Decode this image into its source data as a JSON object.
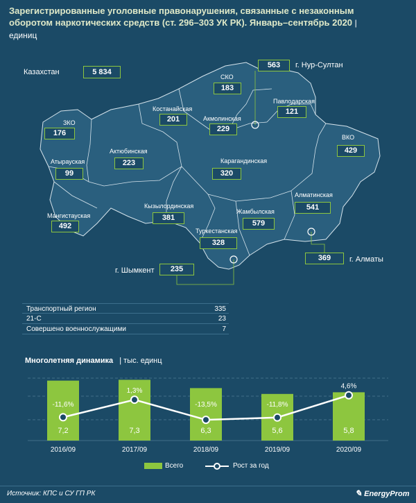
{
  "title": {
    "text": "Зарегистрированные уголовные правонарушения, связанные с незаконным оборотом наркотических средств (ст. 296–303 УК РК). Январь–сентябрь 2020",
    "unit": "| единиц"
  },
  "kazakhstan": {
    "label": "Казахстан",
    "value": "5 834"
  },
  "regions": {
    "sko": {
      "name": "СКО",
      "value": "183"
    },
    "kostanay": {
      "name": "Костанайская",
      "value": "201"
    },
    "akmola": {
      "name": "Акмолинская",
      "value": "229"
    },
    "pavlodar": {
      "name": "Павлодарская",
      "value": "121"
    },
    "zko": {
      "name": "ЗКО",
      "value": "176"
    },
    "aktobe": {
      "name": "Актюбинская",
      "value": "223"
    },
    "vko": {
      "name": "ВКО",
      "value": "429"
    },
    "atyrau": {
      "name": "Атырауская",
      "value": "99"
    },
    "karaganda": {
      "name": "Карагандинская",
      "value": "320"
    },
    "mangistau": {
      "name": "Мангистауская",
      "value": "492"
    },
    "kyzylorda": {
      "name": "Кызылординская",
      "value": "381"
    },
    "zhambyl": {
      "name": "Жамбылская",
      "value": "579"
    },
    "almaty_reg": {
      "name": "Алматинская",
      "value": "541"
    },
    "turkestan": {
      "name": "Туркестанская",
      "value": "328"
    }
  },
  "cities": {
    "nursultan": {
      "name": "г. Нур-Султан",
      "value": "563"
    },
    "shymkent": {
      "name": "г. Шымкент",
      "value": "235"
    },
    "almaty": {
      "name": "г. Алматы",
      "value": "369"
    }
  },
  "stats": [
    {
      "label": "Транспортный регион",
      "value": "335"
    },
    {
      "label": "21-С",
      "value": "23"
    },
    {
      "label": "Совершено военнослужащими",
      "value": "7"
    }
  ],
  "dynamics": {
    "title": "Многолетняя динамика",
    "unit": "| тыс. единц"
  },
  "chart_data": {
    "type": "bar",
    "categories": [
      "2016/09",
      "2017/09",
      "2018/09",
      "2019/09",
      "2020/09"
    ],
    "series": [
      {
        "name": "Всего",
        "values": [
          7.2,
          7.3,
          6.3,
          5.6,
          5.8
        ],
        "labels": [
          "7,2",
          "7,3",
          "6,3",
          "5,6",
          "5,8"
        ],
        "color": "#8dc63f"
      },
      {
        "name": "Рост за год",
        "values": [
          -11.6,
          1.3,
          -13.5,
          -11.8,
          4.6
        ],
        "labels": [
          "-11,6%",
          "1,3%",
          "-13,5%",
          "-11,8%",
          "4,6%"
        ],
        "color": "#ffffff",
        "type": "line"
      }
    ]
  },
  "source": "Источник: КПС и СУ ГП РК",
  "brand": "EnergyProm",
  "colors": {
    "background": "#1b4a66",
    "map_fill": "#2a5f7e",
    "accent": "#8dc63f"
  }
}
